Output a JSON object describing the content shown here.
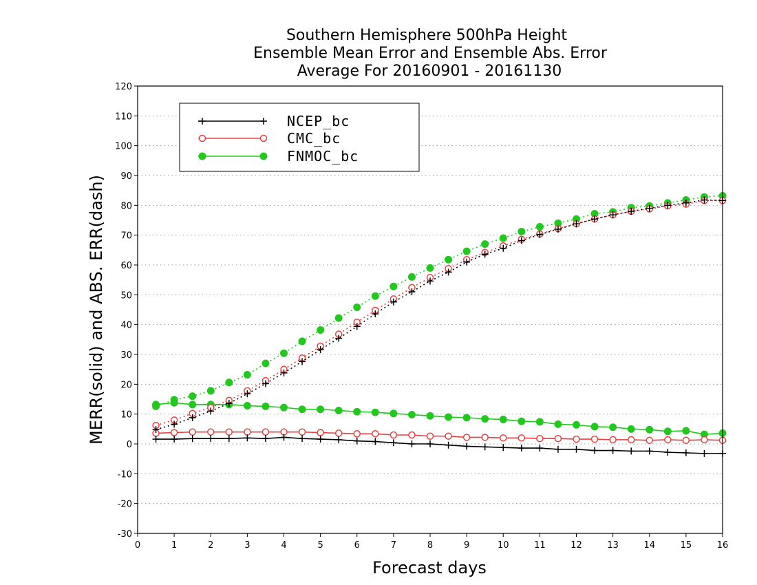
{
  "chart_data": {
    "type": "line",
    "title": [
      "Southern Hemisphere 500hPa Height",
      "Ensemble Mean Error and Ensemble Abs. Error",
      "Average For 20160901 - 20161130"
    ],
    "xlabel": "Forecast days",
    "ylabel": "MERR(solid) and ABS. ERR(dash)",
    "xlim": [
      0,
      16
    ],
    "ylim": [
      -30,
      120
    ],
    "xticks": [
      0,
      1,
      2,
      3,
      4,
      5,
      6,
      7,
      8,
      9,
      10,
      11,
      12,
      13,
      14,
      15,
      16
    ],
    "yticks": [
      -30,
      -20,
      -10,
      0,
      10,
      20,
      30,
      40,
      50,
      60,
      70,
      80,
      90,
      100,
      110,
      120
    ],
    "grid": "horizontal dotted",
    "legend_position": "top-left",
    "x": [
      0.5,
      1,
      1.5,
      2,
      2.5,
      3,
      3.5,
      4,
      4.5,
      5,
      5.5,
      6,
      6.5,
      7,
      7.5,
      8,
      8.5,
      9,
      9.5,
      10,
      10.5,
      11,
      11.5,
      12,
      12.5,
      13,
      13.5,
      14,
      14.5,
      15,
      15.5,
      16
    ],
    "series": [
      {
        "name": "NCEP_bc",
        "color": "#000000",
        "marker": "plus",
        "mean_error": [
          1.6,
          1.6,
          1.8,
          1.8,
          1.8,
          2.0,
          1.8,
          2.2,
          1.8,
          1.6,
          1.4,
          1.0,
          0.8,
          0.4,
          0.0,
          0.0,
          -0.4,
          -0.8,
          -1.0,
          -1.2,
          -1.4,
          -1.4,
          -1.8,
          -1.8,
          -2.2,
          -2.2,
          -2.4,
          -2.4,
          -2.8,
          -3.0,
          -3.2,
          -3.2
        ],
        "abs_error": [
          4.8,
          6.6,
          8.8,
          11.0,
          13.6,
          16.8,
          20.2,
          23.8,
          27.6,
          31.6,
          35.4,
          39.4,
          43.6,
          47.6,
          51.0,
          54.6,
          57.6,
          61.0,
          63.6,
          65.6,
          68.2,
          70.2,
          72.0,
          73.8,
          75.4,
          76.8,
          78.0,
          79.0,
          80.0,
          80.8,
          81.8,
          81.6
        ]
      },
      {
        "name": "CMC_bc",
        "color": "#e84040",
        "marker": "open-circle",
        "mean_error": [
          3.6,
          3.8,
          4.0,
          4.0,
          4.0,
          4.0,
          4.0,
          4.0,
          4.0,
          3.8,
          3.6,
          3.4,
          3.4,
          3.0,
          3.0,
          2.6,
          2.6,
          2.2,
          2.2,
          2.0,
          2.0,
          1.8,
          1.8,
          1.6,
          1.6,
          1.4,
          1.4,
          1.2,
          1.4,
          1.2,
          1.4,
          1.2
        ],
        "abs_error": [
          6.2,
          8.0,
          10.2,
          12.2,
          14.6,
          17.8,
          21.2,
          25.0,
          28.8,
          32.8,
          36.8,
          40.8,
          44.8,
          48.6,
          52.4,
          55.8,
          58.8,
          61.8,
          64.2,
          66.4,
          68.6,
          70.4,
          72.2,
          73.8,
          75.4,
          76.8,
          78.0,
          78.8,
          79.8,
          80.4,
          81.6,
          81.6
        ]
      },
      {
        "name": "FNMOC_bc",
        "color": "#22c81e",
        "marker": "filled-circle",
        "mean_error": [
          13.2,
          13.8,
          13.2,
          13.2,
          13.2,
          12.8,
          12.6,
          12.2,
          11.6,
          11.6,
          11.2,
          10.8,
          10.6,
          10.2,
          9.8,
          9.4,
          9.0,
          8.8,
          8.4,
          8.2,
          7.6,
          7.4,
          6.6,
          6.4,
          5.8,
          5.6,
          5.0,
          4.8,
          4.2,
          4.4,
          3.2,
          3.6
        ],
        "abs_error": [
          12.6,
          14.8,
          16.0,
          17.8,
          20.6,
          23.2,
          27.0,
          30.4,
          34.4,
          38.2,
          42.2,
          45.8,
          49.6,
          52.8,
          56.0,
          59.0,
          61.8,
          64.6,
          67.0,
          69.0,
          71.2,
          72.8,
          74.0,
          75.4,
          77.2,
          77.8,
          79.2,
          79.8,
          80.8,
          81.8,
          82.8,
          83.2
        ]
      }
    ]
  }
}
